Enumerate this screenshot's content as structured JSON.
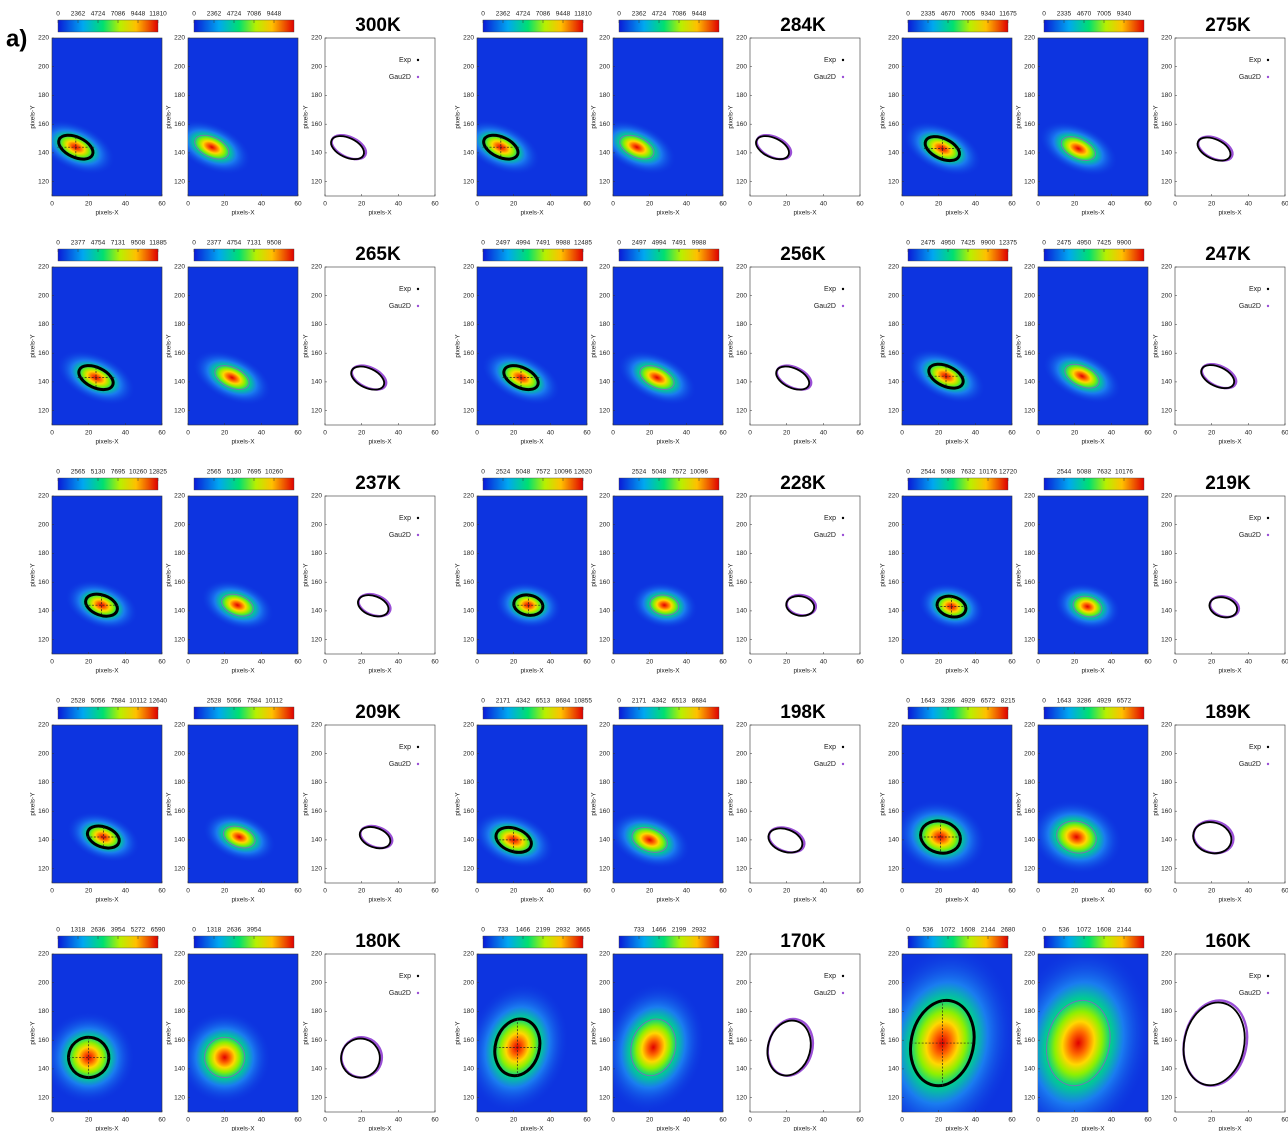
{
  "figure_label": "a)",
  "axis": {
    "xlabel": "pixels-X",
    "ylabel": "pixels-Y",
    "xlim": [
      0,
      60
    ],
    "ylim": [
      110,
      220
    ],
    "xticks": [
      0,
      20,
      40,
      60
    ],
    "yticks": [
      120,
      140,
      160,
      180,
      200,
      220
    ]
  },
  "legend": [
    "Exp",
    "Gau2D"
  ],
  "panels": [
    {
      "temperature": "300K",
      "cbar_exp": [
        0,
        2362,
        4724,
        7086,
        9448,
        11810
      ],
      "cbar_fit": [
        0,
        2362,
        4724,
        7086,
        9448
      ],
      "center": [
        13,
        144
      ],
      "radius": [
        10,
        7
      ],
      "tilt": 25
    },
    {
      "temperature": "284K",
      "cbar_exp": [
        0,
        2362,
        4724,
        7086,
        9448,
        11810
      ],
      "cbar_fit": [
        0,
        2362,
        4724,
        7086,
        9448
      ],
      "center": [
        13,
        144
      ],
      "radius": [
        10,
        7
      ],
      "tilt": 25
    },
    {
      "temperature": "275K",
      "cbar_exp": [
        0,
        2335,
        4670,
        7005,
        9340,
        11675
      ],
      "cbar_fit": [
        0,
        2335,
        4670,
        7005,
        9340
      ],
      "center": [
        22,
        143
      ],
      "radius": [
        10,
        7
      ],
      "tilt": 25
    },
    {
      "temperature": "265K",
      "cbar_exp": [
        0,
        2377,
        4754,
        7131,
        9508,
        11885
      ],
      "cbar_fit": [
        0,
        2377,
        4754,
        7131,
        9508
      ],
      "center": [
        24,
        143
      ],
      "radius": [
        10,
        7
      ],
      "tilt": 25
    },
    {
      "temperature": "256K",
      "cbar_exp": [
        0,
        2497,
        4994,
        7491,
        9988,
        12485
      ],
      "cbar_fit": [
        0,
        2497,
        4994,
        7491,
        9988
      ],
      "center": [
        24,
        143
      ],
      "radius": [
        10,
        7
      ],
      "tilt": 25
    },
    {
      "temperature": "247K",
      "cbar_exp": [
        0,
        2475,
        4950,
        7425,
        9900,
        12375
      ],
      "cbar_fit": [
        0,
        2475,
        4950,
        7425,
        9900
      ],
      "center": [
        24,
        144
      ],
      "radius": [
        10,
        7
      ],
      "tilt": 25
    },
    {
      "temperature": "237K",
      "cbar_exp": [
        0,
        2565,
        5130,
        7695,
        10260,
        12825
      ],
      "cbar_fit": [
        2565,
        5130,
        7695,
        10260
      ],
      "center": [
        27,
        144
      ],
      "radius": [
        9,
        7
      ],
      "tilt": 20
    },
    {
      "temperature": "228K",
      "cbar_exp": [
        0,
        2524,
        5048,
        7572,
        10096,
        12620
      ],
      "cbar_fit": [
        2524,
        5048,
        7572,
        10096
      ],
      "center": [
        28,
        144
      ],
      "radius": [
        8,
        7
      ],
      "tilt": 10
    },
    {
      "temperature": "219K",
      "cbar_exp": [
        0,
        2544,
        5088,
        7632,
        10176,
        12720
      ],
      "cbar_fit": [
        2544,
        5088,
        7632,
        10176
      ],
      "center": [
        27,
        143
      ],
      "radius": [
        8,
        7
      ],
      "tilt": 15
    },
    {
      "temperature": "209K",
      "cbar_exp": [
        0,
        2528,
        5056,
        7584,
        10112,
        12640
      ],
      "cbar_fit": [
        2528,
        5056,
        7584,
        10112
      ],
      "center": [
        28,
        142
      ],
      "radius": [
        9,
        7
      ],
      "tilt": 20
    },
    {
      "temperature": "198K",
      "cbar_exp": [
        0,
        2171,
        4342,
        6513,
        8684,
        10855
      ],
      "cbar_fit": [
        0,
        2171,
        4342,
        6513,
        8684
      ],
      "center": [
        20,
        140
      ],
      "radius": [
        10,
        8
      ],
      "tilt": 20
    },
    {
      "temperature": "189K",
      "cbar_exp": [
        0,
        1643,
        3286,
        4929,
        6572,
        8215
      ],
      "cbar_fit": [
        0,
        1643,
        3286,
        4929,
        6572
      ],
      "center": [
        21,
        142
      ],
      "radius": [
        11,
        11
      ],
      "tilt": 15
    },
    {
      "temperature": "180K",
      "cbar_exp": [
        0,
        1318,
        2636,
        3954,
        5272,
        6590
      ],
      "cbar_fit": [
        0,
        1318,
        2636,
        3954
      ],
      "center": [
        20,
        148
      ],
      "radius": [
        11,
        14
      ],
      "tilt": 15
    },
    {
      "temperature": "170K",
      "cbar_exp": [
        0,
        733,
        1466,
        2199,
        2932,
        3665
      ],
      "cbar_fit": [
        733,
        1466,
        2199,
        2932
      ],
      "center": [
        22,
        155
      ],
      "radius": [
        12,
        20
      ],
      "tilt": 15
    },
    {
      "temperature": "160K",
      "cbar_exp": [
        0,
        536,
        1072,
        1608,
        2144,
        2680
      ],
      "cbar_fit": [
        0,
        536,
        1072,
        1608,
        2144
      ],
      "center": [
        22,
        158
      ],
      "radius": [
        17,
        30
      ],
      "tilt": 12
    }
  ]
}
